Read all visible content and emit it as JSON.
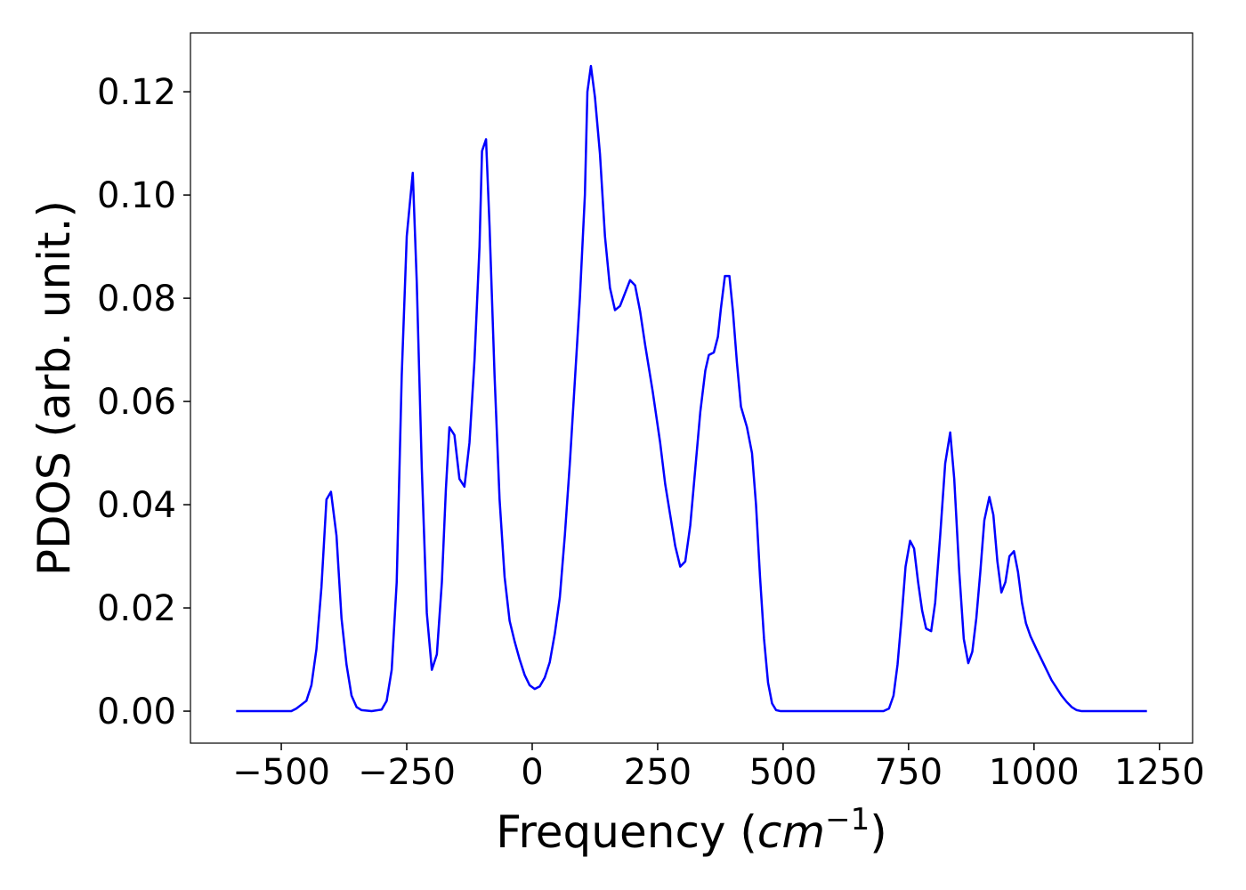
{
  "chart_data": {
    "type": "line",
    "xlabel_parts": [
      "Frequency (",
      "cm",
      "−1",
      ")"
    ],
    "ylabel": "PDOS (arb. unit.)",
    "xlim": [
      -681,
      1316
    ],
    "ylim": [
      -0.0062,
      0.1314
    ],
    "xticks": [
      {
        "value": -500,
        "label": "−500"
      },
      {
        "value": -250,
        "label": "−250"
      },
      0,
      250,
      500,
      750,
      1000,
      1250
    ],
    "yticks": [
      {
        "value": 0,
        "label": "0.00"
      },
      {
        "value": 0.02,
        "label": "0.02"
      },
      {
        "value": 0.04,
        "label": "0.04"
      },
      {
        "value": 0.06,
        "label": "0.06"
      },
      {
        "value": 0.08,
        "label": "0.08"
      },
      {
        "value": 0.1,
        "label": "0.10"
      },
      {
        "value": 0.12,
        "label": "0.12"
      }
    ],
    "x": [
      -590,
      -480,
      -470,
      -450,
      -440,
      -430,
      -420,
      -410,
      -401,
      -390,
      -380,
      -370,
      -360,
      -350,
      -340,
      -320,
      -300,
      -290,
      -280,
      -270,
      -260,
      -250,
      -238,
      -230,
      -220,
      -210,
      -200,
      -190,
      -180,
      -172,
      -165,
      -155,
      -145,
      -135,
      -125,
      -115,
      -105,
      -100,
      -92,
      -85,
      -75,
      -65,
      -55,
      -45,
      -35,
      -25,
      -15,
      -5,
      5,
      15,
      25,
      35,
      45,
      55,
      65,
      75,
      85,
      95,
      105,
      110,
      117,
      125,
      135,
      145,
      155,
      165,
      175,
      185,
      195,
      205,
      215,
      225,
      240,
      255,
      265,
      275,
      285,
      295,
      305,
      315,
      325,
      335,
      345,
      352,
      362,
      370,
      376,
      384,
      393,
      400,
      408,
      416,
      428,
      438,
      446,
      454,
      462,
      470,
      478,
      486,
      495,
      700,
      711,
      720,
      728,
      736,
      744,
      753,
      761,
      769,
      777,
      785,
      795,
      803,
      813,
      823,
      833,
      841,
      851,
      860,
      869,
      877,
      885,
      893,
      901,
      911,
      919,
      927,
      935,
      943,
      951,
      960,
      968,
      976,
      984,
      993,
      1005,
      1015,
      1025,
      1035,
      1045,
      1055,
      1065,
      1075,
      1085,
      1095,
      1225
    ],
    "series": [
      {
        "name": "PDOS",
        "color": "#0000ff",
        "values": [
          0,
          0,
          0.0005,
          0.002,
          0.005,
          0.012,
          0.024,
          0.041,
          0.0425,
          0.034,
          0.018,
          0.009,
          0.003,
          0.0008,
          0.0002,
          0,
          0.0003,
          0.002,
          0.008,
          0.025,
          0.065,
          0.092,
          0.1043,
          0.083,
          0.047,
          0.019,
          0.008,
          0.011,
          0.025,
          0.043,
          0.055,
          0.0535,
          0.045,
          0.0435,
          0.052,
          0.068,
          0.09,
          0.1085,
          0.1108,
          0.094,
          0.065,
          0.041,
          0.026,
          0.0175,
          0.0135,
          0.01,
          0.007,
          0.005,
          0.0043,
          0.0048,
          0.0065,
          0.0095,
          0.015,
          0.022,
          0.034,
          0.048,
          0.064,
          0.08,
          0.1,
          0.12,
          0.125,
          0.119,
          0.108,
          0.092,
          0.082,
          0.0777,
          0.0785,
          0.081,
          0.0835,
          0.0825,
          0.0775,
          0.071,
          0.062,
          0.052,
          0.044,
          0.038,
          0.032,
          0.028,
          0.029,
          0.036,
          0.047,
          0.058,
          0.066,
          0.069,
          0.0695,
          0.0725,
          0.078,
          0.0843,
          0.0843,
          0.0775,
          0.0675,
          0.059,
          0.055,
          0.05,
          0.04,
          0.026,
          0.014,
          0.0055,
          0.0015,
          0.0002,
          0,
          0,
          0.0005,
          0.003,
          0.009,
          0.018,
          0.028,
          0.033,
          0.0315,
          0.025,
          0.0195,
          0.016,
          0.0155,
          0.021,
          0.034,
          0.048,
          0.054,
          0.045,
          0.027,
          0.014,
          0.0093,
          0.0115,
          0.018,
          0.027,
          0.037,
          0.0415,
          0.038,
          0.029,
          0.023,
          0.025,
          0.03,
          0.031,
          0.027,
          0.021,
          0.017,
          0.0145,
          0.012,
          0.01,
          0.008,
          0.006,
          0.0045,
          0.003,
          0.0018,
          0.0008,
          0.0002,
          0,
          0
        ]
      }
    ]
  }
}
